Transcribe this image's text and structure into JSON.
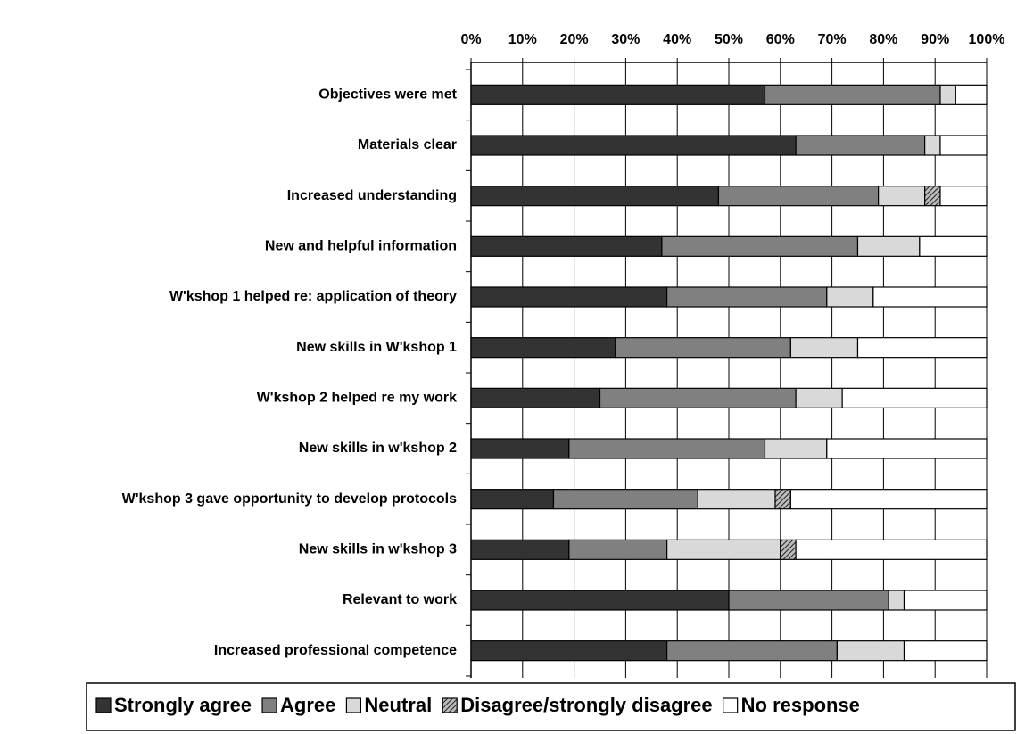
{
  "chart_data": {
    "type": "bar",
    "orientation": "horizontal",
    "stacked": true,
    "categories": [
      "Objectives were met",
      "Materials clear",
      "Increased understanding",
      "New and helpful information",
      "W'kshop 1 helped re: application of theory",
      "New skills in W'kshop 1",
      "W'kshop 2 helped re my work",
      "New skills in w'kshop 2",
      "W'kshop 3 gave opportunity to develop protocols",
      "New skills in w'kshop 3",
      "Relevant to work",
      "Increased professional competence"
    ],
    "series": [
      {
        "name": "Strongly agree",
        "color": "#333333",
        "values": [
          57,
          63,
          48,
          37,
          38,
          28,
          25,
          19,
          16,
          19,
          50,
          38
        ]
      },
      {
        "name": "Agree",
        "color": "#808080",
        "values": [
          34,
          25,
          31,
          38,
          31,
          34,
          38,
          38,
          28,
          19,
          31,
          33
        ]
      },
      {
        "name": "Neutral",
        "color": "#d9d9d9",
        "values": [
          3,
          3,
          9,
          12,
          9,
          13,
          9,
          12,
          15,
          22,
          3,
          13
        ]
      },
      {
        "name": "Disagree/strongly disagree",
        "color": "#6b6b6b",
        "values": [
          0,
          0,
          3,
          0,
          0,
          0,
          0,
          0,
          3,
          3,
          0,
          0
        ]
      },
      {
        "name": "No response",
        "color": "#ffffff",
        "values": [
          6,
          9,
          9,
          13,
          22,
          25,
          28,
          31,
          38,
          37,
          16,
          16
        ]
      }
    ],
    "xlim": [
      0,
      100
    ],
    "xticks": [
      {
        "value": 0,
        "label": "0%"
      },
      {
        "value": 10,
        "label": "10%"
      },
      {
        "value": 20,
        "label": "20%"
      },
      {
        "value": 30,
        "label": "30%"
      },
      {
        "value": 40,
        "label": "40%"
      },
      {
        "value": 50,
        "label": "50%"
      },
      {
        "value": 60,
        "label": "60%"
      },
      {
        "value": 70,
        "label": "70%"
      },
      {
        "value": 80,
        "label": "80%"
      },
      {
        "value": 90,
        "label": "90%"
      },
      {
        "value": 100,
        "label": "100%"
      }
    ],
    "grid": true,
    "legend": "bottom"
  }
}
